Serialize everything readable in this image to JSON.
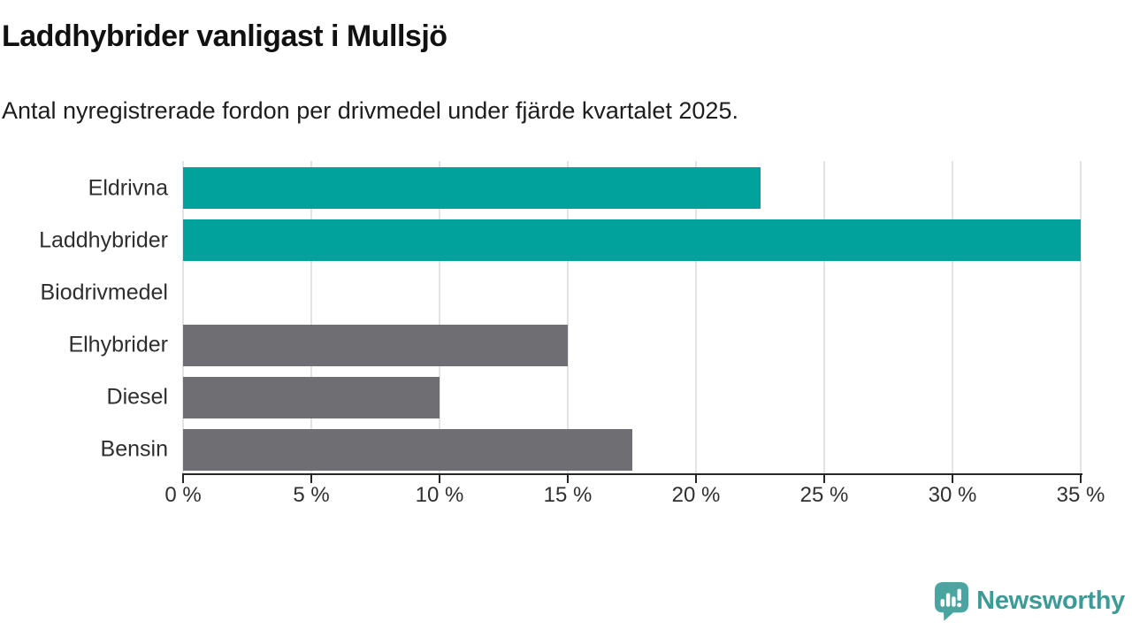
{
  "header": {
    "title": "Laddhybrider vanligast i Mullsjö",
    "subtitle": "Antal nyregistrerade fordon per drivmedel under fjärde kvartalet 2025."
  },
  "chart_data": {
    "type": "bar",
    "orientation": "horizontal",
    "title": "Laddhybrider vanligast i Mullsjö",
    "subtitle": "Antal nyregistrerade fordon per drivmedel under fjärde kvartalet 2025.",
    "categories": [
      "Eldrivna",
      "Laddhybrider",
      "Biodrivmedel",
      "Elhybrider",
      "Diesel",
      "Bensin"
    ],
    "values": [
      22.5,
      35,
      0,
      15,
      10,
      17.5
    ],
    "unit": "%",
    "xlabel": "",
    "ylabel": "",
    "xlim": [
      0,
      35
    ],
    "xticks": [
      0,
      5,
      10,
      15,
      20,
      25,
      30,
      35
    ],
    "xtick_labels": [
      "0 %",
      "5 %",
      "10 %",
      "15 %",
      "20 %",
      "25 %",
      "30 %",
      "35 %"
    ],
    "bar_colors": [
      "#00a29b",
      "#00a29b",
      "#00a29b",
      "#6e6e73",
      "#6e6e73",
      "#6e6e73"
    ],
    "grid": "vertical",
    "legend_position": "none"
  },
  "colors": {
    "accent_teal": "#00a29b",
    "neutral_gray": "#6e6e73",
    "gridline": "#e3e3e3",
    "axis": "#262626",
    "brand_text_teal": "#3a9b97",
    "brand_icon_teal": "#4aa5a1"
  },
  "footer": {
    "brand_name": "Newsworthy",
    "brand_icon": "newsworthy-speech-bubble-bar-chart-icon"
  }
}
